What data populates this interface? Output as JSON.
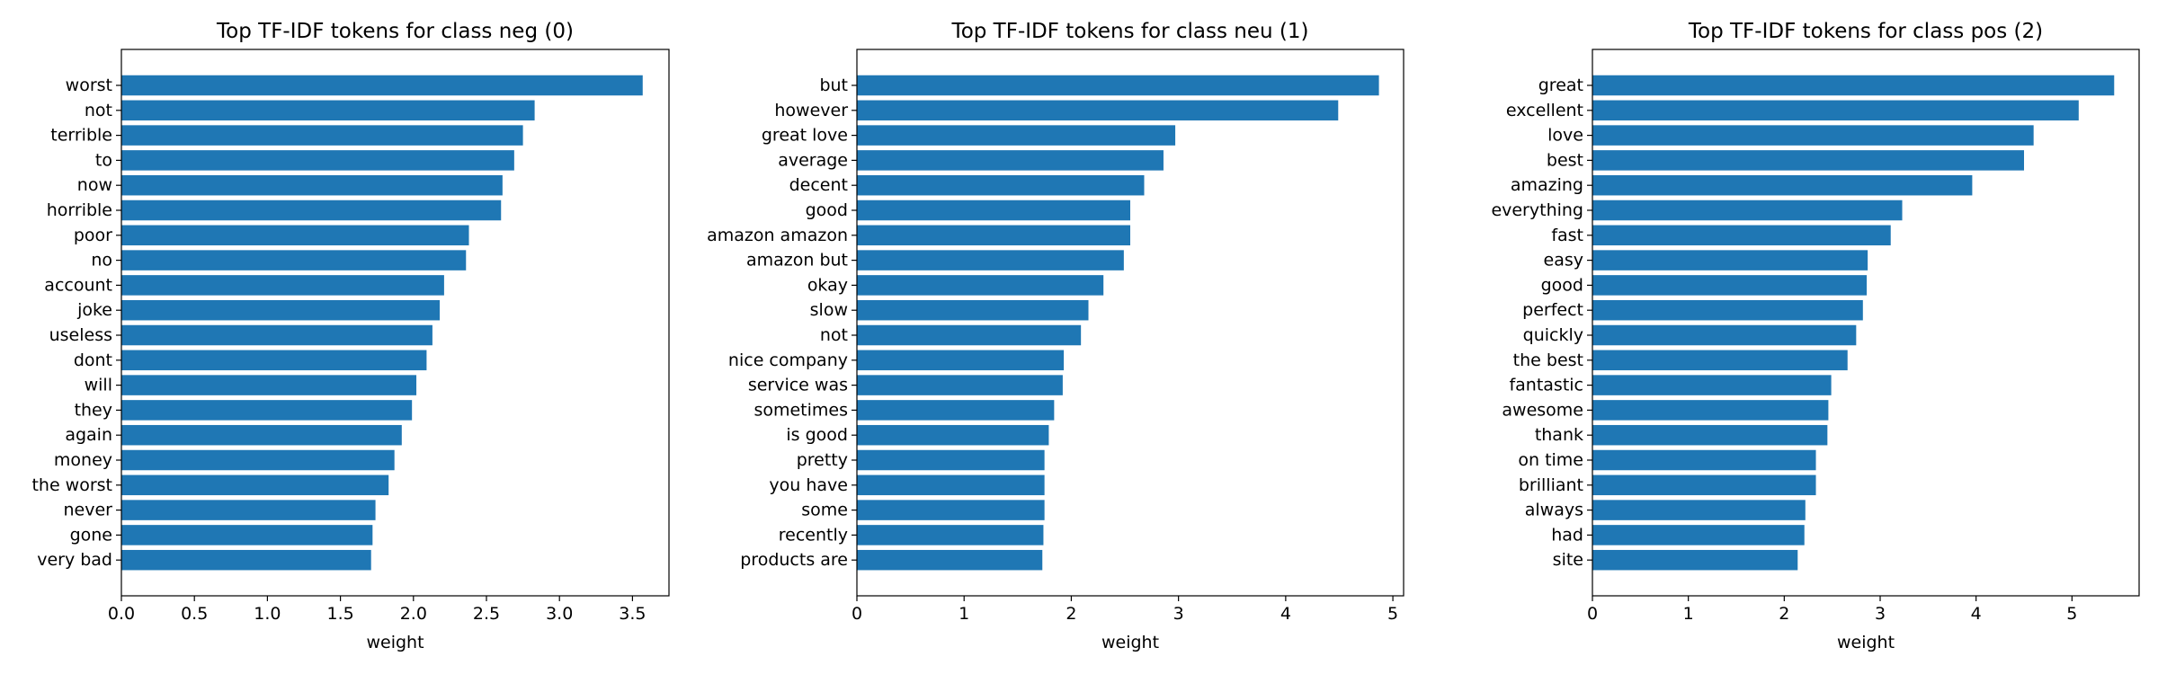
{
  "chart_data": [
    {
      "type": "bar",
      "orientation": "horizontal",
      "title": "Top TF-IDF tokens for class neg (0)",
      "xlabel": "weight",
      "ylabel": "",
      "xlim": [
        0,
        3.75
      ],
      "xticks": [
        "0.0",
        "0.5",
        "1.0",
        "1.5",
        "2.0",
        "2.5",
        "3.0",
        "3.5"
      ],
      "grid": false,
      "color": "#1f77b4",
      "categories": [
        "worst",
        "not",
        "terrible",
        "to",
        "now",
        "horrible",
        "poor",
        "no",
        "account",
        "joke",
        "useless",
        "dont",
        "will",
        "they",
        "again",
        "money",
        "the worst",
        "never",
        "gone",
        "very bad"
      ],
      "values": [
        3.57,
        2.83,
        2.75,
        2.69,
        2.61,
        2.6,
        2.38,
        2.36,
        2.21,
        2.18,
        2.13,
        2.09,
        2.02,
        1.99,
        1.92,
        1.87,
        1.83,
        1.74,
        1.72,
        1.71
      ]
    },
    {
      "type": "bar",
      "orientation": "horizontal",
      "title": "Top TF-IDF tokens for class neu (1)",
      "xlabel": "weight",
      "ylabel": "",
      "xlim": [
        0,
        5.1
      ],
      "xticks": [
        "0",
        "1",
        "2",
        "3",
        "4",
        "5"
      ],
      "grid": false,
      "color": "#1f77b4",
      "categories": [
        "but",
        "however",
        "great love",
        "average",
        "decent",
        "good",
        "amazon amazon",
        "amazon but",
        "okay",
        "slow",
        "not",
        "nice company",
        "service was",
        "sometimes",
        "is good",
        "pretty",
        "you have",
        "some",
        "recently",
        "products are"
      ],
      "values": [
        4.87,
        4.49,
        2.97,
        2.86,
        2.68,
        2.55,
        2.55,
        2.49,
        2.3,
        2.16,
        2.09,
        1.93,
        1.92,
        1.84,
        1.79,
        1.75,
        1.75,
        1.75,
        1.74,
        1.73
      ]
    },
    {
      "type": "bar",
      "orientation": "horizontal",
      "title": "Top TF-IDF tokens for class pos (2)",
      "xlabel": "weight",
      "ylabel": "",
      "xlim": [
        0,
        5.7
      ],
      "xticks": [
        "0",
        "1",
        "2",
        "3",
        "4",
        "5"
      ],
      "grid": false,
      "color": "#1f77b4",
      "categories": [
        "great",
        "excellent",
        "love",
        "best",
        "amazing",
        "everything",
        "fast",
        "easy",
        "good",
        "perfect",
        "quickly",
        "the best",
        "fantastic",
        "awesome",
        "thank",
        "on time",
        "brilliant",
        "always",
        "had",
        "site"
      ],
      "values": [
        5.44,
        5.07,
        4.6,
        4.5,
        3.96,
        3.23,
        3.11,
        2.87,
        2.86,
        2.82,
        2.75,
        2.66,
        2.49,
        2.46,
        2.45,
        2.33,
        2.33,
        2.22,
        2.21,
        2.14
      ]
    }
  ]
}
